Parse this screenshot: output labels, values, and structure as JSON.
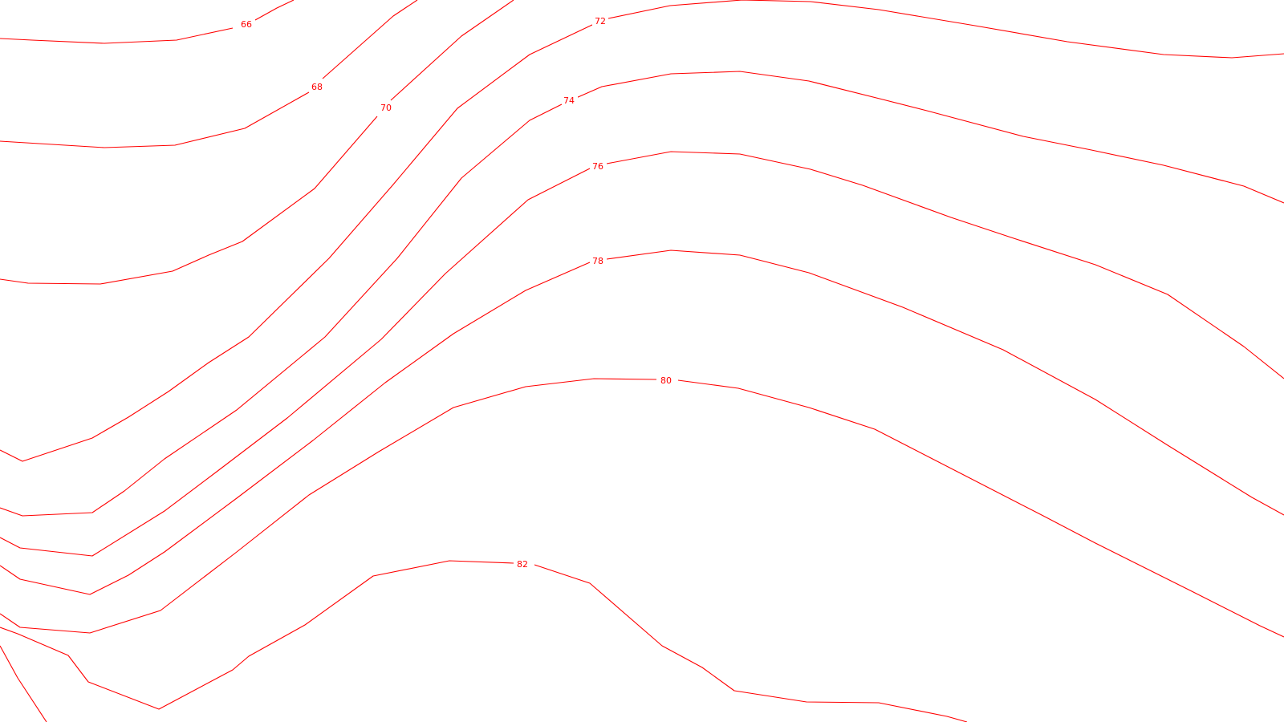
{
  "map": {
    "background": "#ffffff",
    "line_color": "#ff0000",
    "contours": [
      {
        "value": "66",
        "label": "66"
      },
      {
        "value": "68",
        "label": "68"
      },
      {
        "value": "70",
        "label": "70"
      },
      {
        "value": "72",
        "label": "72"
      },
      {
        "value": "74",
        "label": "74"
      },
      {
        "value": "76",
        "label": "76"
      },
      {
        "value": "78",
        "label": "78"
      },
      {
        "value": "80",
        "label": "80"
      },
      {
        "value": "82",
        "label": "82"
      }
    ]
  }
}
